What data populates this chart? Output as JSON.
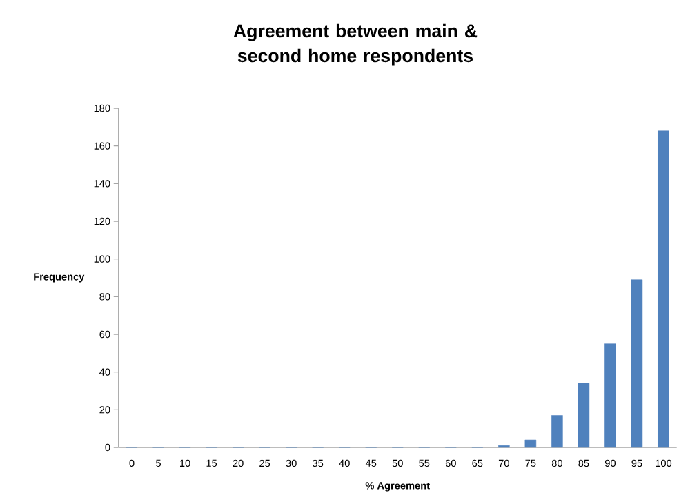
{
  "chart_data": {
    "type": "bar",
    "title": "Agreement between main & second home respondents",
    "xlabel": "% Agreement",
    "ylabel": "Frequency",
    "categories": [
      "0",
      "5",
      "10",
      "15",
      "20",
      "25",
      "30",
      "35",
      "40",
      "45",
      "50",
      "55",
      "60",
      "65",
      "70",
      "75",
      "80",
      "85",
      "90",
      "95",
      "100"
    ],
    "values": [
      0,
      0,
      0,
      0,
      0,
      0,
      0,
      0,
      0,
      0,
      0,
      0,
      0,
      0,
      1,
      4,
      17,
      34,
      55,
      89,
      168
    ],
    "color": "#4f81bd",
    "ylim": [
      0,
      180
    ],
    "yticks": [
      0,
      20,
      40,
      60,
      80,
      100,
      120,
      140,
      160,
      180
    ]
  }
}
